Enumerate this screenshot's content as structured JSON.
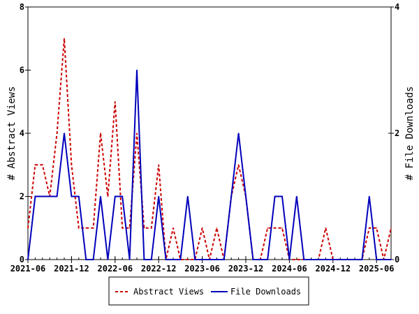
{
  "chart_data": {
    "type": "line",
    "title": "",
    "xlabel": "",
    "ylabel": "# Abstract Views",
    "y2label": "# File Downloads",
    "ylim": [
      0,
      8
    ],
    "y2lim": [
      0,
      4
    ],
    "yticks": [
      "0",
      "2",
      "4",
      "6",
      "8"
    ],
    "y2ticks": [
      "0",
      "2",
      "4"
    ],
    "xtick_labels": [
      "2021-06",
      "2021-12",
      "2022-06",
      "2022-12",
      "2023-06",
      "2023-12",
      "2024-06",
      "2024-12",
      "2025-06"
    ],
    "x_start": "2021-06",
    "x_end": "2025-08",
    "grid": false,
    "legend_placement": "bottom",
    "series": [
      {
        "name": "Abstract Views",
        "axis": "left",
        "color": "#cc0000",
        "style": "dashed",
        "values": [
          1,
          3,
          3,
          2,
          4,
          7,
          3,
          1,
          1,
          1,
          4,
          2,
          5,
          1,
          1,
          4,
          1,
          1,
          3,
          0,
          1,
          0,
          0,
          0,
          1,
          0,
          1,
          0,
          2,
          3,
          2,
          0,
          0,
          1,
          1,
          1,
          0,
          0,
          0,
          0,
          0,
          1,
          0,
          0,
          0,
          0,
          0,
          1,
          1,
          0,
          1
        ]
      },
      {
        "name": "File Downloads",
        "axis": "right",
        "color": "#0000bb",
        "style": "solid",
        "values": [
          0,
          1,
          1,
          1,
          1,
          2,
          1,
          1,
          0,
          0,
          1,
          0,
          1,
          1,
          0,
          3,
          0,
          0,
          1,
          0,
          0,
          0,
          1,
          0,
          0,
          0,
          0,
          0,
          1,
          2,
          1,
          0,
          0,
          0,
          1,
          1,
          0,
          1,
          0,
          0,
          0,
          0,
          0,
          0,
          0,
          0,
          0,
          1,
          0,
          0,
          0
        ]
      }
    ]
  }
}
